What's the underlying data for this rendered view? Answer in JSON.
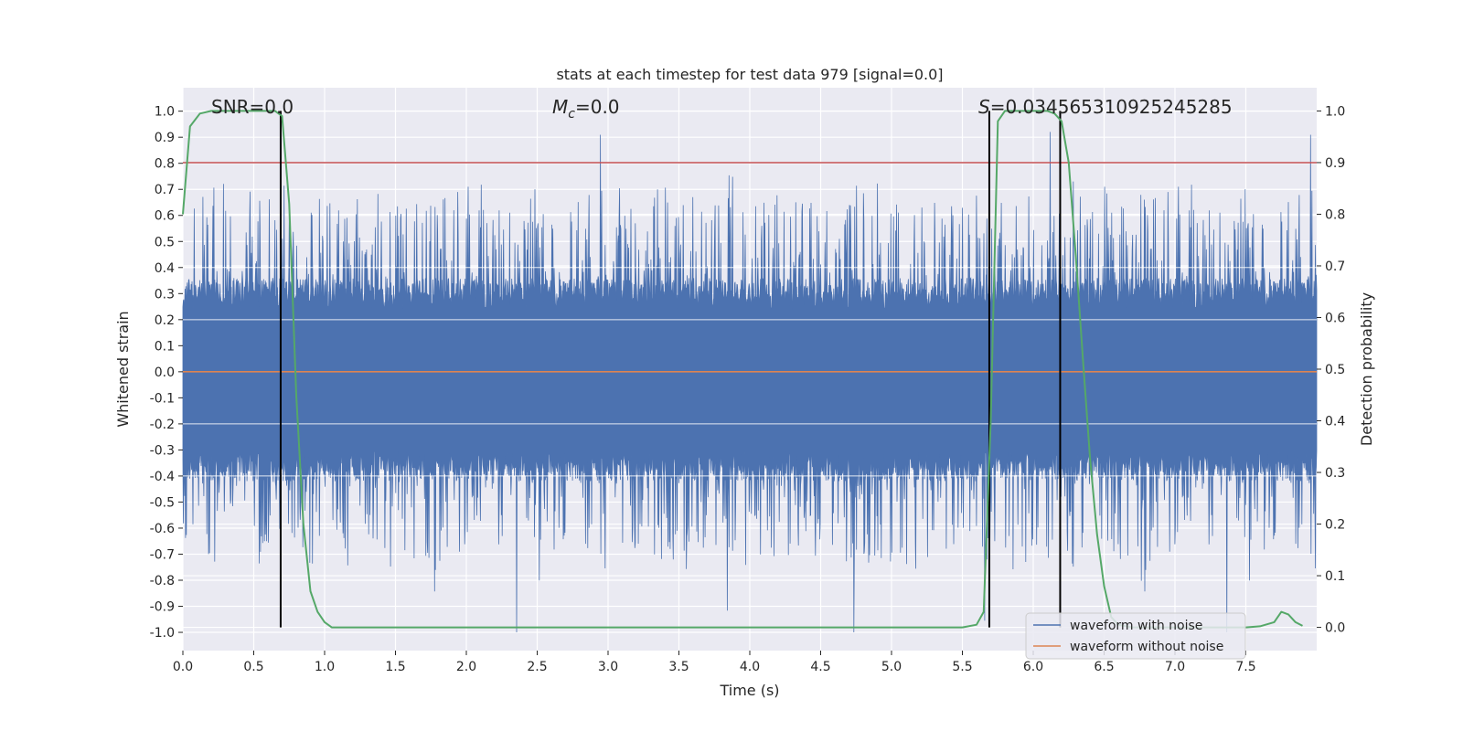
{
  "chart_data": {
    "type": "line",
    "title": "stats at each timestep for test data 979 [signal=0.0]",
    "xlabel": "Time (s)",
    "ylabel": "Whitened strain",
    "y2label": "Detection probability",
    "xlim": [
      0.0,
      8.0
    ],
    "ylim": [
      -1.07,
      1.09
    ],
    "y2lim": [
      -0.045,
      1.045
    ],
    "xticks": [
      "0.0",
      "0.5",
      "1.0",
      "1.5",
      "2.0",
      "2.5",
      "3.0",
      "3.5",
      "4.0",
      "4.5",
      "5.0",
      "5.5",
      "6.0",
      "6.5",
      "7.0",
      "7.5"
    ],
    "yticks": [
      "1.0",
      "0.9",
      "0.8",
      "0.7",
      "0.6",
      "0.5",
      "0.4",
      "0.3",
      "0.2",
      "0.1",
      "0.0",
      "-0.1",
      "-0.2",
      "-0.3",
      "-0.4",
      "-0.5",
      "-0.6",
      "-0.7",
      "-0.8",
      "-0.9",
      "-1.0"
    ],
    "y2ticks": [
      "1.0",
      "0.9",
      "0.8",
      "0.7",
      "0.6",
      "0.5",
      "0.4",
      "0.3",
      "0.2",
      "0.1",
      "0.0"
    ],
    "annotations": {
      "snr": "SNR=0.0",
      "mc_symbol": "M",
      "mc_sub": "c",
      "mc_value": "=0.0",
      "s_symbol": "S",
      "s_value": "=0.034565310925245285"
    },
    "threshold": {
      "axis": "y2",
      "value": 0.9,
      "color": "#c44e52"
    },
    "vertical_lines": [
      0.69,
      5.69,
      6.19
    ],
    "series": [
      {
        "name": "waveform with noise",
        "color": "#4c72b0",
        "axis": "y1",
        "kind": "noise",
        "duration": 8.0,
        "upper_envelope": 0.3,
        "lower_envelope": -0.36,
        "max": 1.0,
        "min": -1.0
      },
      {
        "name": "waveform without noise",
        "color": "#dd8452",
        "axis": "y1",
        "x": [
          0.0,
          8.0
        ],
        "values": [
          0.0,
          0.0
        ]
      },
      {
        "name": "detection probability",
        "color": "#55a868",
        "axis": "y2",
        "x": [
          0.0,
          0.05,
          0.12,
          0.2,
          0.3,
          0.4,
          0.5,
          0.6,
          0.65,
          0.7,
          0.75,
          0.8,
          0.85,
          0.9,
          0.95,
          1.0,
          1.05,
          1.5,
          2.0,
          3.0,
          4.0,
          5.0,
          5.5,
          5.6,
          5.65,
          5.7,
          5.75,
          5.8,
          5.9,
          6.0,
          6.1,
          6.15,
          6.2,
          6.25,
          6.3,
          6.35,
          6.4,
          6.45,
          6.5,
          6.55,
          6.6,
          6.7,
          7.0,
          7.5,
          7.6,
          7.7,
          7.75,
          7.8,
          7.85,
          7.9
        ],
        "values": [
          0.8,
          0.97,
          0.995,
          1.0,
          1.0,
          1.0,
          1.0,
          1.0,
          1.0,
          0.99,
          0.82,
          0.45,
          0.2,
          0.07,
          0.03,
          0.01,
          0.0,
          0.0,
          0.0,
          0.0,
          0.0,
          0.0,
          0.0,
          0.005,
          0.03,
          0.4,
          0.98,
          1.0,
          1.0,
          1.0,
          1.0,
          0.995,
          0.98,
          0.9,
          0.72,
          0.52,
          0.33,
          0.18,
          0.08,
          0.02,
          0.005,
          0.0,
          0.0,
          0.0,
          0.002,
          0.01,
          0.03,
          0.025,
          0.01,
          0.003
        ]
      }
    ],
    "legend": {
      "location": "lower-right",
      "entries": [
        "waveform with noise",
        "waveform without noise"
      ]
    }
  }
}
